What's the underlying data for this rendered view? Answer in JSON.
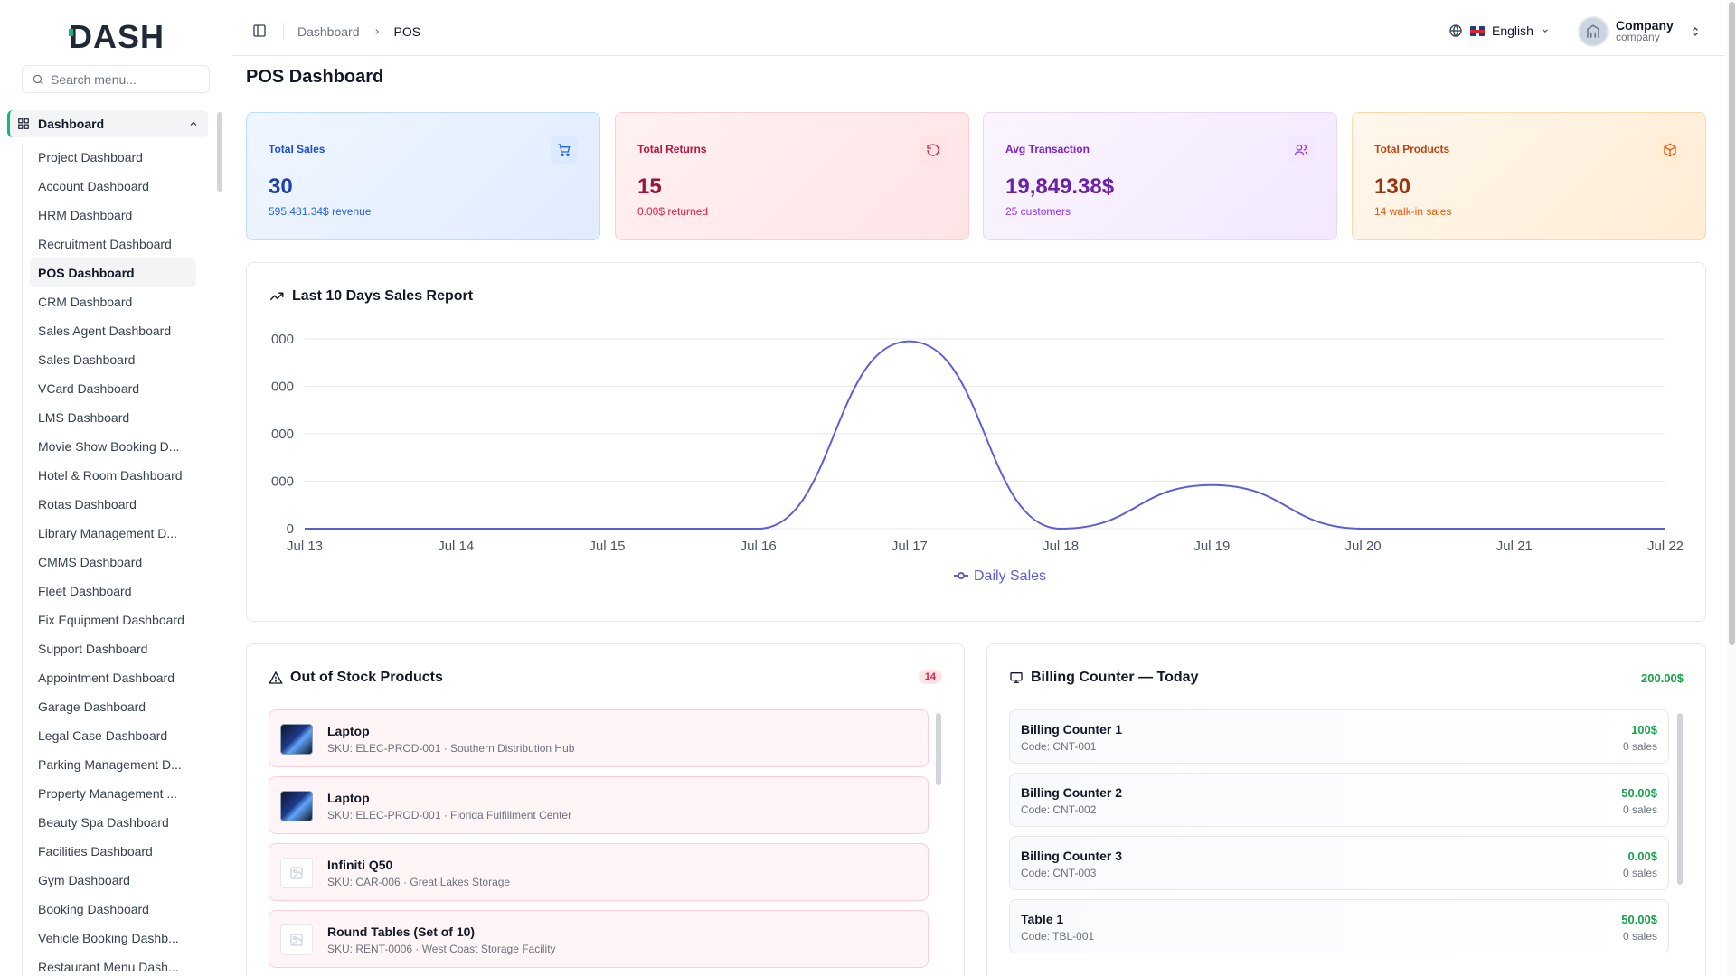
{
  "app": {
    "logo_text": "DASH"
  },
  "sidebar": {
    "search_placeholder": "Search menu...",
    "group_label": "Dashboard",
    "items": [
      "Project Dashboard",
      "Account Dashboard",
      "HRM Dashboard",
      "Recruitment Dashboard",
      "POS Dashboard",
      "CRM Dashboard",
      "Sales Agent Dashboard",
      "Sales Dashboard",
      "VCard Dashboard",
      "LMS Dashboard",
      "Movie Show Booking D...",
      "Hotel & Room Dashboard",
      "Rotas Dashboard",
      "Library Management D...",
      "CMMS Dashboard",
      "Fleet Dashboard",
      "Fix Equipment Dashboard",
      "Support Dashboard",
      "Appointment Dashboard",
      "Garage Dashboard",
      "Legal Case Dashboard",
      "Parking Management D...",
      "Property Management ...",
      "Beauty Spa Dashboard",
      "Facilities Dashboard",
      "Gym Dashboard",
      "Booking Dashboard",
      "Vehicle Booking Dashb...",
      "Restaurant Menu Dash..."
    ],
    "active_index": 4
  },
  "header": {
    "breadcrumb": [
      "Dashboard",
      "POS"
    ],
    "language": "English",
    "user_name": "Company",
    "user_role": "company"
  },
  "page": {
    "title": "POS Dashboard"
  },
  "stats": [
    {
      "label": "Total Sales",
      "value": "30",
      "sub": "595,481.34$ revenue",
      "icon": "cart-icon"
    },
    {
      "label": "Total Returns",
      "value": "15",
      "sub": "0.00$ returned",
      "icon": "refresh-icon"
    },
    {
      "label": "Avg Transaction",
      "value": "19,849.38$",
      "sub": "25 customers",
      "icon": "users-icon"
    },
    {
      "label": "Total Products",
      "value": "130",
      "sub": "14 walk-in sales",
      "icon": "box-icon"
    }
  ],
  "chart": {
    "title": "Last 10 Days Sales Report",
    "title_icon": "trending-up-icon"
  },
  "chart_data": {
    "type": "line",
    "x": [
      "Jul 13",
      "Jul 14",
      "Jul 15",
      "Jul 16",
      "Jul 17",
      "Jul 18",
      "Jul 19",
      "Jul 20",
      "Jul 21",
      "Jul 22"
    ],
    "y_tick_labels": [
      "0",
      "000",
      "000",
      "000",
      "000"
    ],
    "y_ticks": [
      0,
      1,
      2,
      3,
      4
    ],
    "series": [
      {
        "name": "Daily Sales",
        "values": [
          0,
          0,
          0,
          0,
          3.95,
          0,
          0.92,
          0,
          0,
          0
        ]
      }
    ],
    "ylim": [
      0,
      4
    ],
    "smooth": true,
    "grid": true,
    "legend_position": "bottom-center",
    "color": "#5b5fd6"
  },
  "out_of_stock": {
    "title": "Out of Stock Products",
    "count": "14",
    "items": [
      {
        "name": "Laptop",
        "sku": "SKU: ELEC-PROD-001 · Southern Distribution Hub",
        "image": "laptop"
      },
      {
        "name": "Laptop",
        "sku": "SKU: ELEC-PROD-001 · Florida Fulfillment Center",
        "image": "laptop"
      },
      {
        "name": "Infiniti Q50",
        "sku": "SKU: CAR-006 · Great Lakes Storage",
        "image": "placeholder"
      },
      {
        "name": "Round Tables (Set of 10)",
        "sku": "SKU: RENT-0006 · West Coast Storage Facility",
        "image": "placeholder"
      }
    ]
  },
  "billing": {
    "title": "Billing Counter — Today",
    "total": "200.00$",
    "counters": [
      {
        "name": "Billing Counter 1",
        "code": "Code: CNT-001",
        "amount": "100$",
        "sales": "0 sales"
      },
      {
        "name": "Billing Counter 2",
        "code": "Code: CNT-002",
        "amount": "50.00$",
        "sales": "0 sales"
      },
      {
        "name": "Billing Counter 3",
        "code": "Code: CNT-003",
        "amount": "0.00$",
        "sales": "0 sales"
      },
      {
        "name": "Table 1",
        "code": "Code: TBL-001",
        "amount": "50.00$",
        "sales": "0 sales"
      }
    ]
  }
}
